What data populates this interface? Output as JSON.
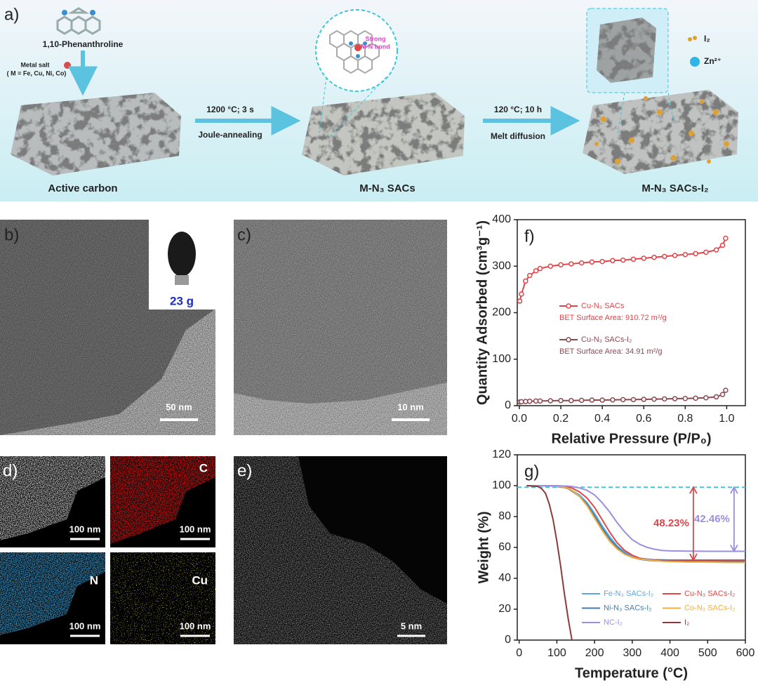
{
  "panel_a": {
    "label": "a)",
    "precursor": "1,10-Phenanthroline",
    "metal_salt": "Metal salt",
    "metal_list": "( M = Fe, Cu, Ni, Co)",
    "step1_condition": "1200 °C; 3 s",
    "step1_method": "Joule-annealing",
    "step2_condition": "120 °C; 10 h",
    "step2_method": "Melt  diffusion",
    "bond_label": [
      "Strong",
      "M-N bond"
    ],
    "legend_i2": "I₂",
    "legend_zn": "Zn²⁺",
    "stages": [
      "Active carbon",
      "M-N₃ SACs",
      "M-N₃ SACs-I₂"
    ]
  },
  "panel_b": {
    "label": "b)",
    "inset_label": "23 g",
    "scale_bar": "50 nm"
  },
  "panel_c": {
    "label": "c)",
    "scale_bar": "10 nm"
  },
  "panel_d": {
    "label": "d)",
    "maps": [
      {
        "scale_bar": "100 nm"
      },
      {
        "element": "C",
        "scale_bar": "100 nm"
      },
      {
        "element": "N",
        "scale_bar": "100 nm"
      },
      {
        "element": "Cu",
        "scale_bar": "100 nm"
      }
    ]
  },
  "panel_e": {
    "label": "e)",
    "scale_bar": "5 nm"
  },
  "chart_data": [
    {
      "type": "line",
      "panel_label": "f)",
      "xlabel": "Relative Pressure (P/P₀)",
      "ylabel": "Quantity Adsorbed (cm³g⁻¹)",
      "x": [
        0.002,
        0.01,
        0.03,
        0.05,
        0.08,
        0.1,
        0.15,
        0.2,
        0.25,
        0.3,
        0.35,
        0.4,
        0.45,
        0.5,
        0.55,
        0.6,
        0.65,
        0.7,
        0.75,
        0.8,
        0.85,
        0.9,
        0.95,
        0.98,
        0.995
      ],
      "series": [
        {
          "name": "Cu-N₃ SACs",
          "color": "#e0454a",
          "bet_label": "BET Surface Area: 910.72 m²/g",
          "values": [
            225,
            240,
            268,
            280,
            290,
            295,
            300,
            303,
            305,
            307,
            309,
            310,
            312,
            313,
            315,
            317,
            319,
            321,
            323,
            325,
            327,
            330,
            335,
            345,
            360
          ]
        },
        {
          "name": "Cu-N₃ SACs-I₂",
          "color": "#8b4a52",
          "bet_label": "BET Surface Area:  34.91 m²/g",
          "values": [
            8,
            8.5,
            9,
            9.5,
            10,
            10,
            10.5,
            11,
            11,
            11.5,
            12,
            12,
            12.5,
            13,
            13,
            13.5,
            14,
            14.5,
            15,
            15.5,
            16,
            17,
            19,
            24,
            33
          ]
        }
      ],
      "markers": true,
      "legend_position": "center-left",
      "xlim": [
        -0.01,
        1.09
      ],
      "ylim": [
        0,
        400
      ],
      "xticks": [
        {
          "value": 0,
          "label": "0.0"
        },
        0.2,
        0.4,
        0.6,
        0.8,
        {
          "value": 1,
          "label": "1.0"
        }
      ],
      "yticks": [
        0,
        100,
        200,
        300,
        400
      ]
    },
    {
      "type": "line",
      "panel_label": "g)",
      "xlabel": "Temperature (°C)",
      "ylabel": "Weight (%)",
      "x": [
        20,
        50,
        60,
        70,
        80,
        90,
        100,
        110,
        120,
        130,
        140,
        160,
        180,
        200,
        220,
        240,
        260,
        280,
        300,
        320,
        340,
        360,
        380,
        400,
        450,
        500,
        550,
        600
      ],
      "series": [
        {
          "name": "Fe-N₃ SACs-I₂",
          "color": "#5aa9e6",
          "values": [
            100,
            100,
            100,
            99.9,
            99.8,
            99.7,
            99.5,
            99.3,
            99,
            98.2,
            97,
            94,
            89,
            82,
            74,
            67,
            61,
            57,
            54.5,
            53,
            52.5,
            52,
            52,
            51.8,
            51.7,
            51.6,
            51.5,
            51.5
          ]
        },
        {
          "name": "Cu-N₃ SACs-I₂",
          "color": "#e04848",
          "values": [
            100,
            100,
            100,
            100,
            99.9,
            99.9,
            99.8,
            99.7,
            99.5,
            99.1,
            98.5,
            96,
            92,
            86,
            78,
            70,
            63,
            58,
            55,
            53,
            52,
            52,
            51.8,
            51.8,
            51.8,
            51.8,
            51.8,
            51.8
          ]
        },
        {
          "name": "Ni-N₃ SACs-I₂",
          "color": "#4a7aa8",
          "values": [
            100,
            100,
            100,
            99.9,
            99.8,
            99.7,
            99.4,
            99.1,
            98.8,
            98,
            96.5,
            93,
            88,
            80.5,
            72.5,
            65.5,
            60,
            56,
            53.5,
            52.3,
            51.7,
            51.3,
            51.2,
            51.1,
            51,
            51,
            51,
            51
          ]
        },
        {
          "name": "Co-N₃ SACs-I₂",
          "color": "#f0b040",
          "values": [
            100,
            100,
            100,
            99.9,
            99.8,
            99.7,
            99.5,
            99.3,
            99,
            98.2,
            97,
            93,
            87,
            79,
            71,
            64,
            59,
            55.5,
            53.5,
            52.5,
            52,
            51.5,
            51,
            50.8,
            50.5,
            50.5,
            50.3,
            50.2
          ]
        },
        {
          "name": "NC-I₂",
          "color": "#9a8fe0",
          "values": [
            100,
            100,
            100,
            100,
            100,
            100,
            100,
            99.9,
            99.8,
            99.7,
            99.5,
            98.5,
            97,
            94,
            89,
            83,
            76,
            70,
            65,
            62,
            60,
            58.8,
            58,
            57.8,
            57.6,
            57.5,
            57.5,
            57.5
          ]
        },
        {
          "name": "I₂",
          "color": "#8b3a3a",
          "values": [
            100,
            99.5,
            98,
            95,
            88,
            78,
            64,
            48,
            30,
            14,
            0,
            null,
            null,
            null,
            null,
            null,
            null,
            null,
            null,
            null,
            null,
            null,
            null,
            null,
            null,
            null,
            null,
            null
          ]
        }
      ],
      "markers": false,
      "legend_position": "lower-left",
      "reference_line": 99,
      "reference_color": "#3cc8d8",
      "annotations": [
        {
          "text": "48.23%",
          "color": "#e0454a",
          "x": 462,
          "y_from": 99,
          "y_to": 51.77
        },
        {
          "text": "42.46%",
          "color": "#9a8fe0",
          "x": 570,
          "y_from": 99,
          "y_to": 57.54
        }
      ],
      "xlim": [
        -5,
        600
      ],
      "ylim": [
        0,
        120
      ],
      "xticks": [
        0,
        100,
        200,
        300,
        400,
        500,
        600
      ],
      "yticks": [
        0,
        20,
        40,
        60,
        80,
        100,
        120
      ]
    }
  ]
}
